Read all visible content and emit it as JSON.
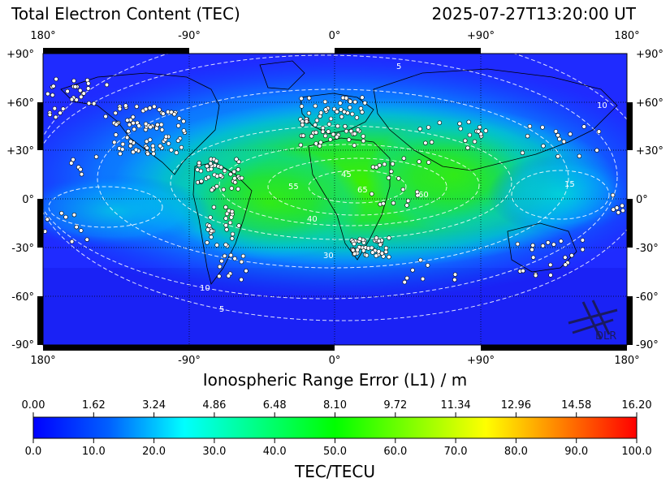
{
  "header": {
    "title": "Total Electron Content (TEC)",
    "timestamp": "2025-07-27T13:20:00 UT"
  },
  "map": {
    "lon_labels": [
      "180°",
      "-90°",
      "0°",
      "+90°",
      "180°"
    ],
    "lat_labels": [
      "+90°",
      "+60°",
      "+30°",
      "0°",
      "-30°",
      "-60°",
      "-90°"
    ],
    "contour_labels": [
      "5",
      "10",
      "15",
      "30",
      "40",
      "45",
      "55",
      "60",
      "65"
    ],
    "logo_text": "DLR",
    "colors": {
      "low": "#1f2bff",
      "mid": "#22e000",
      "cyan": "#00c8ff",
      "stations": "#ffffff"
    }
  },
  "range_error": {
    "title": "Ionospheric Range Error (L1) / m",
    "ticks": [
      "0.00",
      "1.62",
      "3.24",
      "4.86",
      "6.48",
      "8.10",
      "9.72",
      "11.34",
      "12.96",
      "14.58",
      "16.20"
    ]
  },
  "colorbar": {
    "title": "TEC/TECU",
    "ticks": [
      "0.0",
      "10.0",
      "20.0",
      "30.0",
      "40.0",
      "50.0",
      "60.0",
      "70.0",
      "80.0",
      "90.0",
      "100.0"
    ],
    "colors": [
      "#0000ff",
      "#0080ff",
      "#00ffff",
      "#00ff80",
      "#00ff00",
      "#80ff00",
      "#ffff00",
      "#ff8000",
      "#ff0000"
    ]
  }
}
